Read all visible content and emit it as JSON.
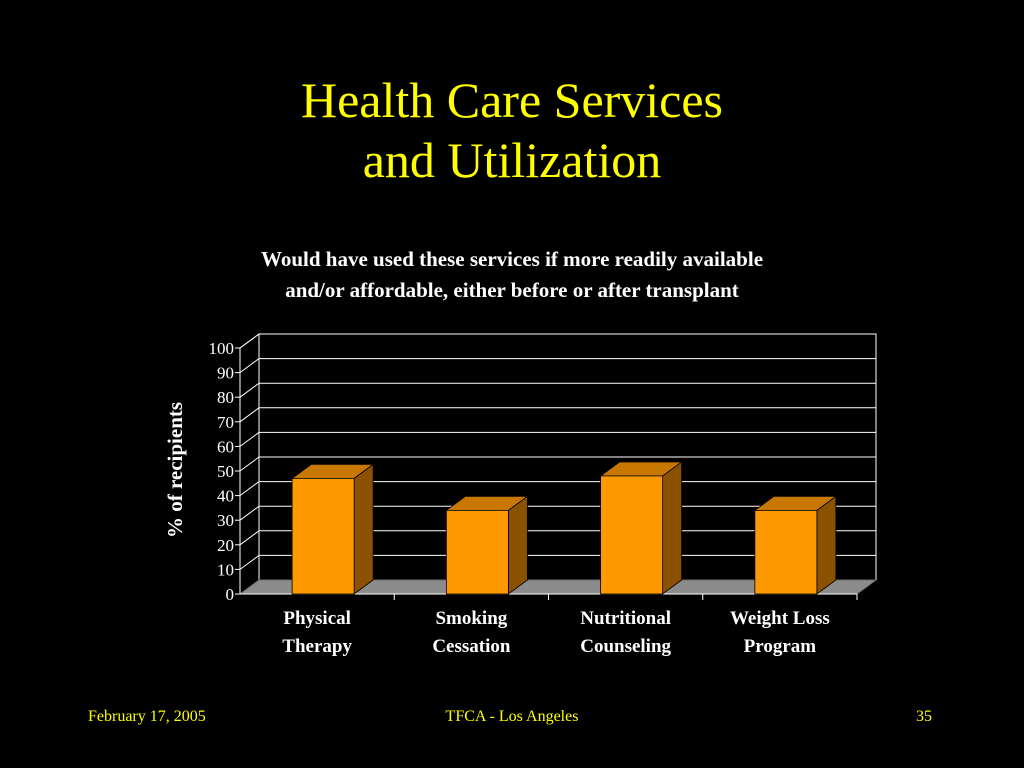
{
  "slide": {
    "title_line1": "Health Care Services",
    "title_line2": "and Utilization",
    "footer_date": "February 17, 2005",
    "footer_event": "TFCA - Los Angeles",
    "footer_page": "35"
  },
  "colors": {
    "background": "#000000",
    "title": "#FFFF00",
    "text": "#FFFFFF",
    "bar_front": "#FF9900",
    "bar_side": "#8A5200",
    "bar_top": "#C87800",
    "floor": "#8C8C8C"
  },
  "chart_data": {
    "type": "bar",
    "title_line1": "Would have used these services if more readily available",
    "title_line2": "and/or affordable, either before or after transplant",
    "ylabel": "%  of  recipients",
    "xlabel": "",
    "categories": [
      [
        "Physical",
        "Therapy"
      ],
      [
        "Smoking",
        "Cessation"
      ],
      [
        "Nutritional",
        "Counseling"
      ],
      [
        "Weight Loss",
        "Program"
      ]
    ],
    "values": [
      47,
      34,
      48,
      34
    ],
    "ylim": [
      0,
      100
    ],
    "yticks": [
      "0",
      "10",
      "20",
      "30",
      "40",
      "50",
      "60",
      "70",
      "80",
      "90",
      "100"
    ],
    "grid": true,
    "style": "3d"
  }
}
